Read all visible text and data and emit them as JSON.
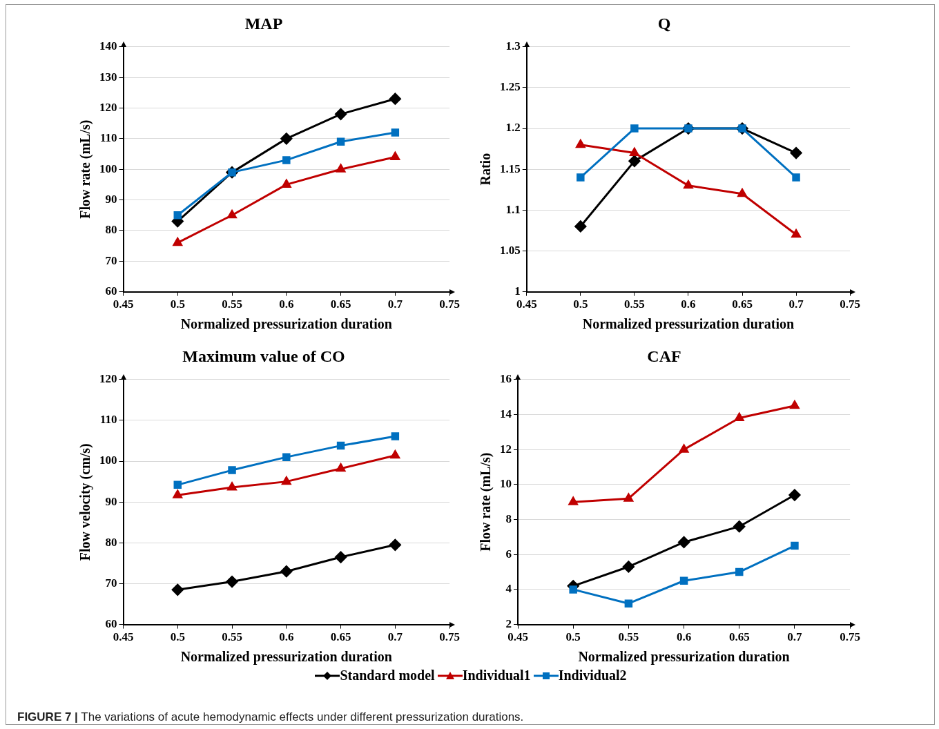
{
  "chart_data": [
    {
      "type": "line",
      "title": "MAP",
      "xlabel": "Normalized pressurization duration",
      "ylabel": "Flow rate (mL/s)",
      "x": [
        0.5,
        0.55,
        0.6,
        0.65,
        0.7
      ],
      "xlim": [
        0.45,
        0.75
      ],
      "xticks": [
        0.45,
        0.5,
        0.55,
        0.6,
        0.65,
        0.7,
        0.75
      ],
      "ylim": [
        60,
        140
      ],
      "yticks": [
        60,
        70,
        80,
        90,
        100,
        110,
        120,
        130,
        140
      ],
      "grid": "y",
      "legend": "bottom",
      "series": [
        {
          "name": "Standard model",
          "color": "#000000",
          "marker": "diamond",
          "values": [
            83,
            99,
            110,
            118,
            123
          ]
        },
        {
          "name": "Individual1",
          "color": "#c00000",
          "marker": "triangle",
          "values": [
            76,
            85,
            95,
            100,
            104
          ]
        },
        {
          "name": "Individual2",
          "color": "#0070c0",
          "marker": "square",
          "values": [
            85,
            99,
            103,
            109,
            112
          ]
        }
      ],
      "annotations": [
        "FIGURE 7 | The variations of acute hemodynamic effects under different pressurization durations."
      ]
    },
    {
      "type": "line",
      "title": "Q",
      "xlabel": "Normalized pressurization duration",
      "ylabel": "Ratio",
      "x": [
        0.5,
        0.55,
        0.6,
        0.65,
        0.7
      ],
      "xlim": [
        0.45,
        0.75
      ],
      "xticks": [
        0.45,
        0.5,
        0.55,
        0.6,
        0.65,
        0.7,
        0.75
      ],
      "ylim": [
        1,
        1.3
      ],
      "yticks": [
        1,
        1.05,
        1.1,
        1.15,
        1.2,
        1.25,
        1.3
      ],
      "grid": "y",
      "series": [
        {
          "color": "#000000",
          "marker": "diamond",
          "values": [
            1.08,
            1.16,
            1.2,
            1.2,
            1.17
          ]
        },
        {
          "color": "#c00000",
          "marker": "triangle",
          "values": [
            1.18,
            1.17,
            1.13,
            1.12,
            1.07
          ]
        },
        {
          "color": "#0070c0",
          "marker": "square",
          "values": [
            1.14,
            1.2,
            1.2,
            1.2,
            1.14
          ]
        }
      ]
    },
    {
      "type": "line",
      "title": "Maximum value of CO",
      "xlabel": "Normalized pressurization duration",
      "ylabel": "Flow velocity (cm/s)",
      "x": [
        0.5,
        0.55,
        0.6,
        0.65,
        0.7
      ],
      "xlim": [
        0.45,
        0.75
      ],
      "xticks": [
        0.45,
        0.5,
        0.55,
        0.6,
        0.65,
        0.7,
        0.75
      ],
      "ylim": [
        60,
        120
      ],
      "yticks": [
        60,
        70,
        80,
        90,
        100,
        110,
        120
      ],
      "grid": "y",
      "series": [
        {
          "color": "#000000",
          "marker": "diamond",
          "values": [
            68.5,
            70.5,
            73,
            76.5,
            79.5
          ]
        },
        {
          "color": "#c00000",
          "marker": "triangle",
          "values": [
            91.7,
            93.6,
            95,
            98.2,
            101.4
          ]
        },
        {
          "color": "#0070c0",
          "marker": "square",
          "values": [
            94.2,
            97.8,
            101,
            103.8,
            106.1
          ]
        }
      ]
    },
    {
      "type": "line",
      "title": "CAF",
      "xlabel": "Normalized pressurization duration",
      "ylabel": "Flow rate (mL/s)",
      "x": [
        0.5,
        0.55,
        0.6,
        0.65,
        0.7
      ],
      "xlim": [
        0.45,
        0.75
      ],
      "xticks": [
        0.45,
        0.5,
        0.55,
        0.6,
        0.65,
        0.7,
        0.75
      ],
      "ylim": [
        2,
        16
      ],
      "yticks": [
        2,
        4,
        6,
        8,
        10,
        12,
        14,
        16
      ],
      "grid": "y",
      "series": [
        {
          "color": "#000000",
          "marker": "diamond",
          "values": [
            4.2,
            5.3,
            6.7,
            7.6,
            9.4
          ]
        },
        {
          "color": "#c00000",
          "marker": "triangle",
          "values": [
            9,
            9.2,
            12,
            13.8,
            14.5
          ]
        },
        {
          "color": "#0070c0",
          "marker": "square",
          "values": [
            4,
            3.2,
            4.5,
            5,
            6.5
          ]
        }
      ]
    }
  ]
}
